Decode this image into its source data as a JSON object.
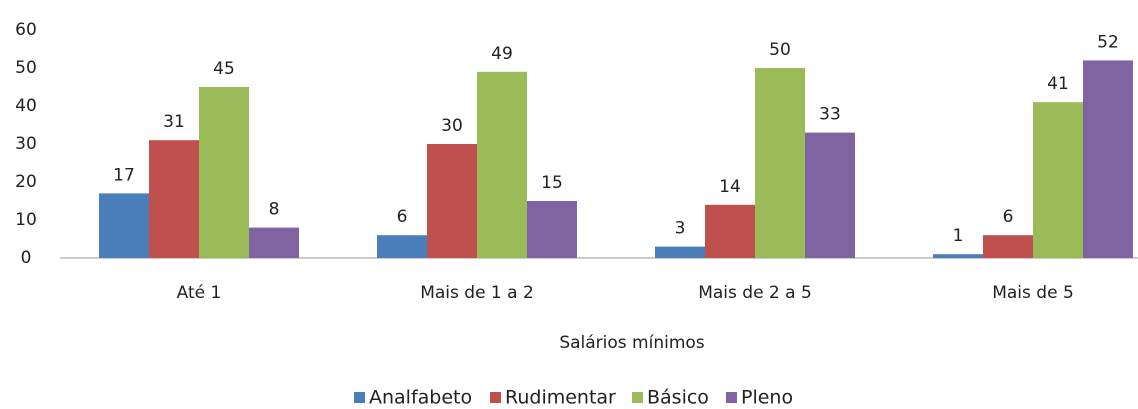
{
  "chart_data": {
    "type": "bar",
    "categories": [
      "Até 1",
      "Mais de 1 a 2",
      "Mais de 2 a 5",
      "Mais de 5"
    ],
    "x_label": "Salários mínimos",
    "series": [
      {
        "name": "Analfabeto",
        "color": "#4a7ebb",
        "values": [
          17,
          6,
          3,
          1
        ]
      },
      {
        "name": "Rudimentar",
        "color": "#c0504d",
        "values": [
          31,
          30,
          14,
          6
        ]
      },
      {
        "name": "Básico",
        "color": "#9bbb59",
        "values": [
          45,
          49,
          50,
          41
        ]
      },
      {
        "name": "Pleno",
        "color": "#8064a2",
        "values": [
          8,
          15,
          33,
          52
        ]
      }
    ],
    "ylim": [
      0,
      60
    ],
    "yticks": [
      0,
      10,
      20,
      30,
      40,
      50,
      60
    ],
    "grid": false,
    "legend": "bottom"
  }
}
